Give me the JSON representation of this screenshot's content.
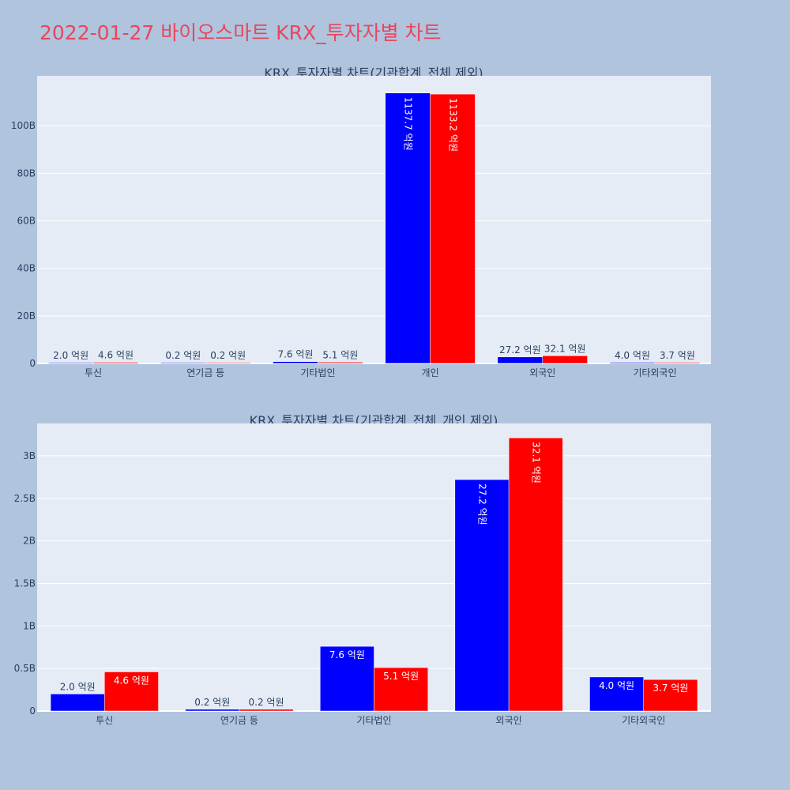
{
  "page": {
    "title": "2022-01-27 바이오스마트 KRX_투자자별 차트"
  },
  "colors": {
    "buy": "#0000ff",
    "sell": "#ff0000",
    "background": "#b0c4de",
    "plot_background": "#e5ecf6",
    "title": "#e8465a"
  },
  "chart_data": [
    {
      "type": "bar",
      "title": "KRX_투자자별 차트(기관합계_전체 제외)",
      "categories": [
        "투신",
        "연기금 등",
        "기타법인",
        "개인",
        "외국인",
        "기타외국인"
      ],
      "series": [
        {
          "values": [
            200000000,
            20000000,
            760000000,
            113770000000,
            2720000000,
            400000000
          ],
          "labels": [
            "2.0 억원",
            "0.2 억원",
            "7.6 억원",
            "1137.7 억원",
            "27.2 억원",
            "4.0 억원"
          ]
        },
        {
          "values": [
            460000000,
            20000000,
            510000000,
            113320000000,
            3210000000,
            370000000
          ],
          "labels": [
            "4.6 억원",
            "0.2 억원",
            "5.1 억원",
            "1133.2 억원",
            "32.1 억원",
            "3.7 억원"
          ]
        }
      ],
      "ylim": [
        0,
        121000000000
      ],
      "yticks": [
        0,
        20000000000,
        40000000000,
        60000000000,
        80000000000,
        100000000000
      ],
      "yticklabels": [
        "0",
        "20B",
        "40B",
        "60B",
        "80B",
        "100B"
      ],
      "grid": true
    },
    {
      "type": "bar",
      "title": "KRX_투자자별 차트(기관합계_전체_개인 제외)",
      "categories": [
        "투신",
        "연기금 등",
        "기타법인",
        "외국인",
        "기타외국인"
      ],
      "series": [
        {
          "values": [
            200000000,
            20000000,
            760000000,
            2720000000,
            400000000
          ],
          "labels": [
            "2.0 억원",
            "0.2 억원",
            "7.6 억원",
            "27.2 억원",
            "4.0 억원"
          ]
        },
        {
          "values": [
            460000000,
            20000000,
            510000000,
            3210000000,
            370000000
          ],
          "labels": [
            "4.6 억원",
            "0.2 억원",
            "5.1 억원",
            "32.1 억원",
            "3.7 억원"
          ]
        }
      ],
      "ylim": [
        0,
        3380000000
      ],
      "yticks": [
        0,
        500000000,
        1000000000,
        1500000000,
        2000000000,
        2500000000,
        3000000000
      ],
      "yticklabels": [
        "0",
        "0.5B",
        "1B",
        "1.5B",
        "2B",
        "2.5B",
        "3B"
      ],
      "grid": true
    }
  ]
}
